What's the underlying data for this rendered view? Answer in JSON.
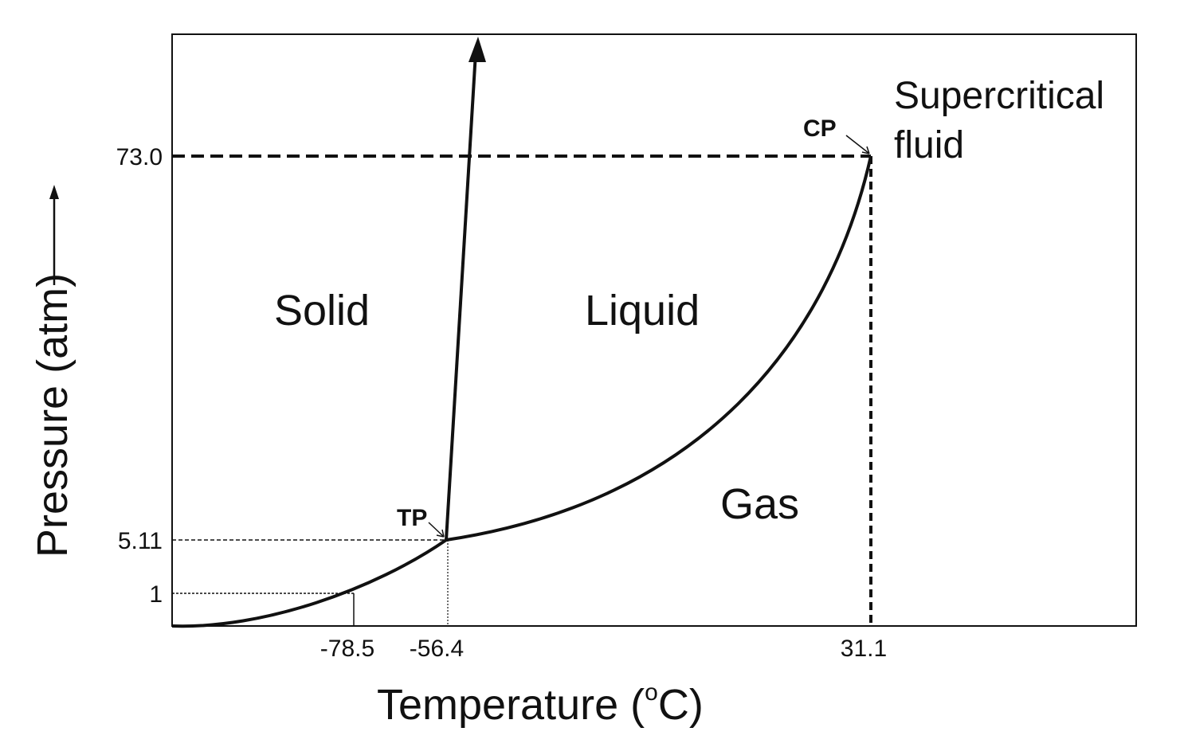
{
  "diagram": {
    "y_axis_label": "Pressure (atm)",
    "x_axis_label_main": "Temperature (",
    "x_axis_label_degree": "o",
    "x_axis_label_unit": "C)",
    "x_ticks": [
      "-78.5",
      "-56.4",
      "31.1"
    ],
    "y_ticks": [
      "73.0",
      "5.11",
      "1"
    ],
    "regions": {
      "solid": "Solid",
      "liquid": "Liquid",
      "gas": "Gas",
      "supercritical_line1": "Supercritical",
      "supercritical_line2": "fluid"
    },
    "points": {
      "triple_point": "TP",
      "critical_point": "CP"
    }
  },
  "colors": {
    "ink": "#111111",
    "background": "#ffffff"
  }
}
